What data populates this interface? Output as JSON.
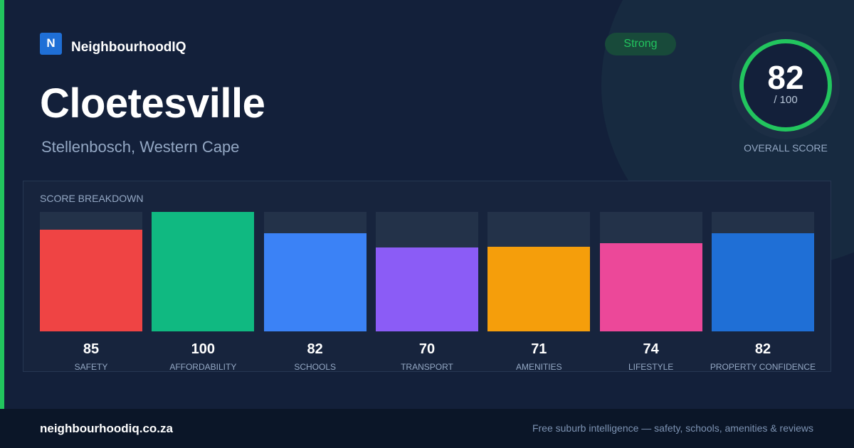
{
  "brand": {
    "logo": "N",
    "name": "NeighbourhoodIQ"
  },
  "badge": "Strong",
  "title": "Cloetesville",
  "subtitle": "Stellenbosch, Western Cape",
  "overall": {
    "score": 82,
    "max_label": "/ 100",
    "label": "OVERALL SCORE"
  },
  "breakdown": {
    "title": "SCORE BREAKDOWN",
    "ylim": [
      0,
      100
    ],
    "categories": [
      "SAFETY",
      "AFFORDABILITY",
      "SCHOOLS",
      "TRANSPORT",
      "AMENITIES",
      "LIFESTYLE",
      "PROPERTY CONFIDENCE"
    ],
    "values": [
      85,
      100,
      82,
      70,
      71,
      74,
      82
    ],
    "colors": [
      "#ef4444",
      "#10b981",
      "#3b82f6",
      "#8b5cf6",
      "#f59e0b",
      "#ec4899",
      "#1f6fd6"
    ]
  },
  "footer": {
    "site": "neighbourhoodiq.co.za",
    "tagline": "Free suburb intelligence — safety, schools, amenities & reviews"
  }
}
